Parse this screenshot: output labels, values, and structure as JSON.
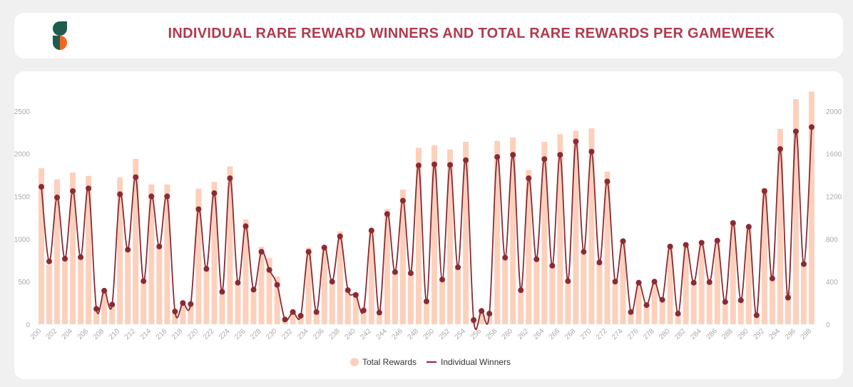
{
  "header": {
    "title": "INDIVIDUAL RARE REWARD WINNERS AND TOTAL RARE REWARDS PER GAMEWEEK",
    "logo_colors": {
      "dark": "#1f5c4d",
      "orange": "#f26522"
    }
  },
  "colors": {
    "bar": "#fdd0bb",
    "line": "#8b2a35",
    "grid": "#eeeeee",
    "tick": "#aaaaaa"
  },
  "chart_data": {
    "type": "bar+line",
    "categories": [
      200,
      201,
      202,
      203,
      204,
      205,
      206,
      207,
      208,
      209,
      210,
      211,
      212,
      213,
      214,
      215,
      216,
      217,
      218,
      219,
      220,
      221,
      222,
      223,
      224,
      225,
      226,
      227,
      228,
      229,
      230,
      231,
      232,
      233,
      234,
      235,
      236,
      237,
      238,
      239,
      240,
      241,
      242,
      243,
      244,
      245,
      246,
      247,
      248,
      249,
      250,
      251,
      252,
      253,
      254,
      255,
      256,
      257,
      258,
      259,
      260,
      261,
      262,
      263,
      264,
      265,
      266,
      267,
      268,
      269,
      270,
      271,
      272,
      273,
      274,
      275,
      276,
      277,
      278,
      279,
      280,
      281,
      282,
      283,
      284,
      285,
      286,
      287,
      288,
      289,
      290,
      291,
      292,
      293,
      294,
      295,
      296,
      297,
      298
    ],
    "x_tick_labels": [
      "200",
      "202",
      "204",
      "206",
      "208",
      "210",
      "212",
      "214",
      "216",
      "218",
      "220",
      "222",
      "224",
      "226",
      "228",
      "230",
      "232",
      "234",
      "236",
      "238",
      "240",
      "242",
      "244",
      "246",
      "248",
      "250",
      "252",
      "254",
      "256",
      "258",
      "260",
      "262",
      "264",
      "266",
      "268",
      "270",
      "272",
      "274",
      "276",
      "278",
      "280",
      "282",
      "284",
      "286",
      "288",
      "290",
      "292",
      "294",
      "296",
      "298"
    ],
    "series": [
      {
        "name": "Total Rewards",
        "axis": "left",
        "type": "bar",
        "values": [
          1830,
          700,
          1700,
          750,
          1780,
          800,
          1740,
          180,
          400,
          240,
          1720,
          860,
          1940,
          500,
          1640,
          900,
          1640,
          140,
          240,
          240,
          1590,
          640,
          1670,
          380,
          1850,
          480,
          1230,
          400,
          910,
          780,
          560,
          70,
          150,
          120,
          900,
          150,
          900,
          500,
          1090,
          420,
          370,
          180,
          1110,
          140,
          1350,
          600,
          1580,
          590,
          2070,
          260,
          2100,
          520,
          2050,
          670,
          2140,
          70,
          160,
          120,
          2150,
          760,
          2190,
          400,
          1810,
          760,
          2140,
          680,
          2230,
          500,
          2270,
          820,
          2300,
          710,
          1790,
          480,
          960,
          140,
          500,
          230,
          500,
          290,
          900,
          130,
          930,
          500,
          940,
          480,
          990,
          270,
          1200,
          280,
          1140,
          110,
          1600,
          520,
          2290,
          380,
          2640,
          700,
          2730
        ]
      },
      {
        "name": "Individual Winners",
        "axis": "right",
        "type": "line",
        "values": [
          1290,
          590,
          1190,
          615,
          1250,
          630,
          1275,
          145,
          315,
          185,
          1220,
          700,
          1380,
          405,
          1200,
          730,
          1200,
          120,
          200,
          190,
          1080,
          520,
          1230,
          305,
          1370,
          390,
          920,
          325,
          680,
          510,
          370,
          45,
          115,
          80,
          680,
          115,
          720,
          400,
          825,
          320,
          275,
          130,
          880,
          110,
          1035,
          490,
          1160,
          480,
          1490,
          215,
          1500,
          420,
          1495,
          535,
          1540,
          40,
          125,
          100,
          1570,
          625,
          1590,
          320,
          1370,
          610,
          1550,
          550,
          1590,
          405,
          1715,
          680,
          1620,
          580,
          1340,
          400,
          780,
          115,
          390,
          180,
          400,
          230,
          730,
          100,
          745,
          390,
          765,
          395,
          785,
          210,
          950,
          225,
          915,
          85,
          1250,
          430,
          1645,
          250,
          1810,
          565,
          1850
        ]
      }
    ],
    "y_left": {
      "min": 0,
      "max": 2750,
      "ticks": [
        "0",
        "500",
        "1000",
        "1500",
        "2000",
        "2500"
      ]
    },
    "y_right": {
      "min": 0,
      "max": 2200,
      "ticks": [
        "0",
        "400",
        "800",
        "1200",
        "1600",
        "2000"
      ]
    },
    "legend": {
      "placement": "bottom-center",
      "items": [
        "Total Rewards",
        "Individual Winners"
      ]
    },
    "grid": false
  }
}
